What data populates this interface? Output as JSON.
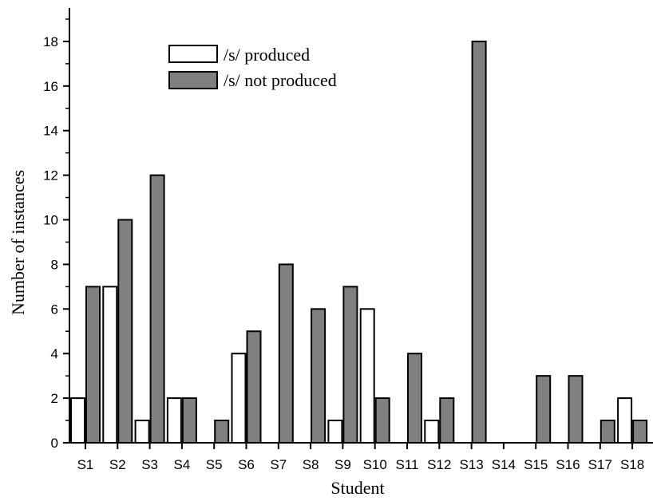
{
  "chart_data": {
    "type": "bar",
    "title": "",
    "xlabel": "Student",
    "ylabel": "Number of instances",
    "ylim": [
      0,
      19.5
    ],
    "yticks": [
      0,
      2,
      4,
      6,
      8,
      10,
      12,
      14,
      16,
      18
    ],
    "grid": false,
    "legend_position": "top-left",
    "categories": [
      "S1",
      "S2",
      "S3",
      "S4",
      "S5",
      "S6",
      "S7",
      "S8",
      "S9",
      "S10",
      "S11",
      "S12",
      "S13",
      "S14",
      "S15",
      "S16",
      "S17",
      "S18"
    ],
    "series": [
      {
        "name": "/s/ produced",
        "fill": "#ffffff",
        "values": [
          2,
          7,
          1,
          2,
          0,
          4,
          0,
          0,
          1,
          6,
          0,
          1,
          0,
          0,
          0,
          0,
          0,
          2
        ]
      },
      {
        "name": "/s/ not produced",
        "fill": "#808080",
        "values": [
          7,
          10,
          12,
          2,
          1,
          5,
          8,
          6,
          7,
          2,
          4,
          2,
          18,
          0,
          3,
          3,
          1,
          1
        ]
      }
    ]
  }
}
